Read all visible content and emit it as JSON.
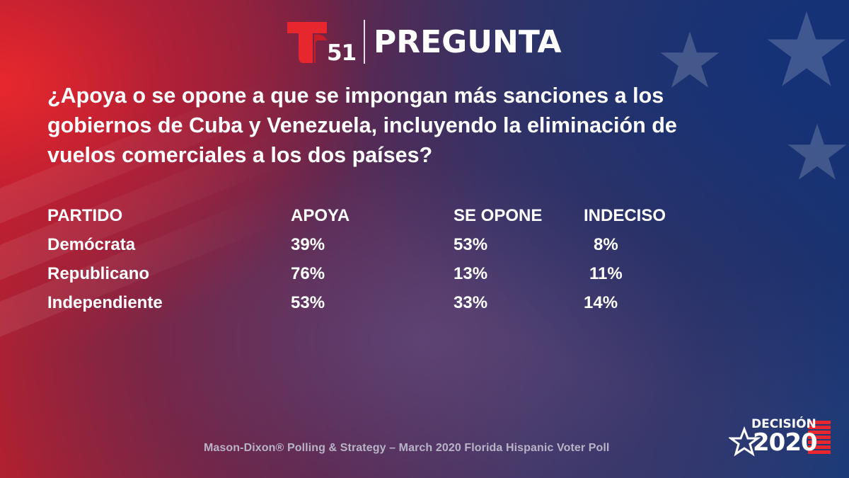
{
  "header": {
    "channel_number": "51",
    "title": "PREGUNTA"
  },
  "question": "¿Apoya o se opone a que se impongan más sanciones a los gobiernos de Cuba y Venezuela, incluyendo la eliminación de vuelos comerciales a los dos países?",
  "table": {
    "columns": [
      "PARTIDO",
      "APOYA",
      "SE OPONE",
      "INDECISO"
    ],
    "rows": [
      [
        "Demócrata",
        "39%",
        "53%",
        "8%"
      ],
      [
        "Republicano",
        "76%",
        "13%",
        "11%"
      ],
      [
        "Independiente",
        "53%",
        "33%",
        "14%"
      ]
    ]
  },
  "source": "Mason-Dixon® Polling & Strategy – March 2020 Florida Hispanic Voter Poll",
  "badge": {
    "word": "DECISIÓN",
    "year": "2020"
  },
  "colors": {
    "brand_red": "#e8262d",
    "text": "#ffffff",
    "source_text": "#b9b3c8"
  },
  "icons": [
    "telemundo-t-logo",
    "star-icon"
  ]
}
